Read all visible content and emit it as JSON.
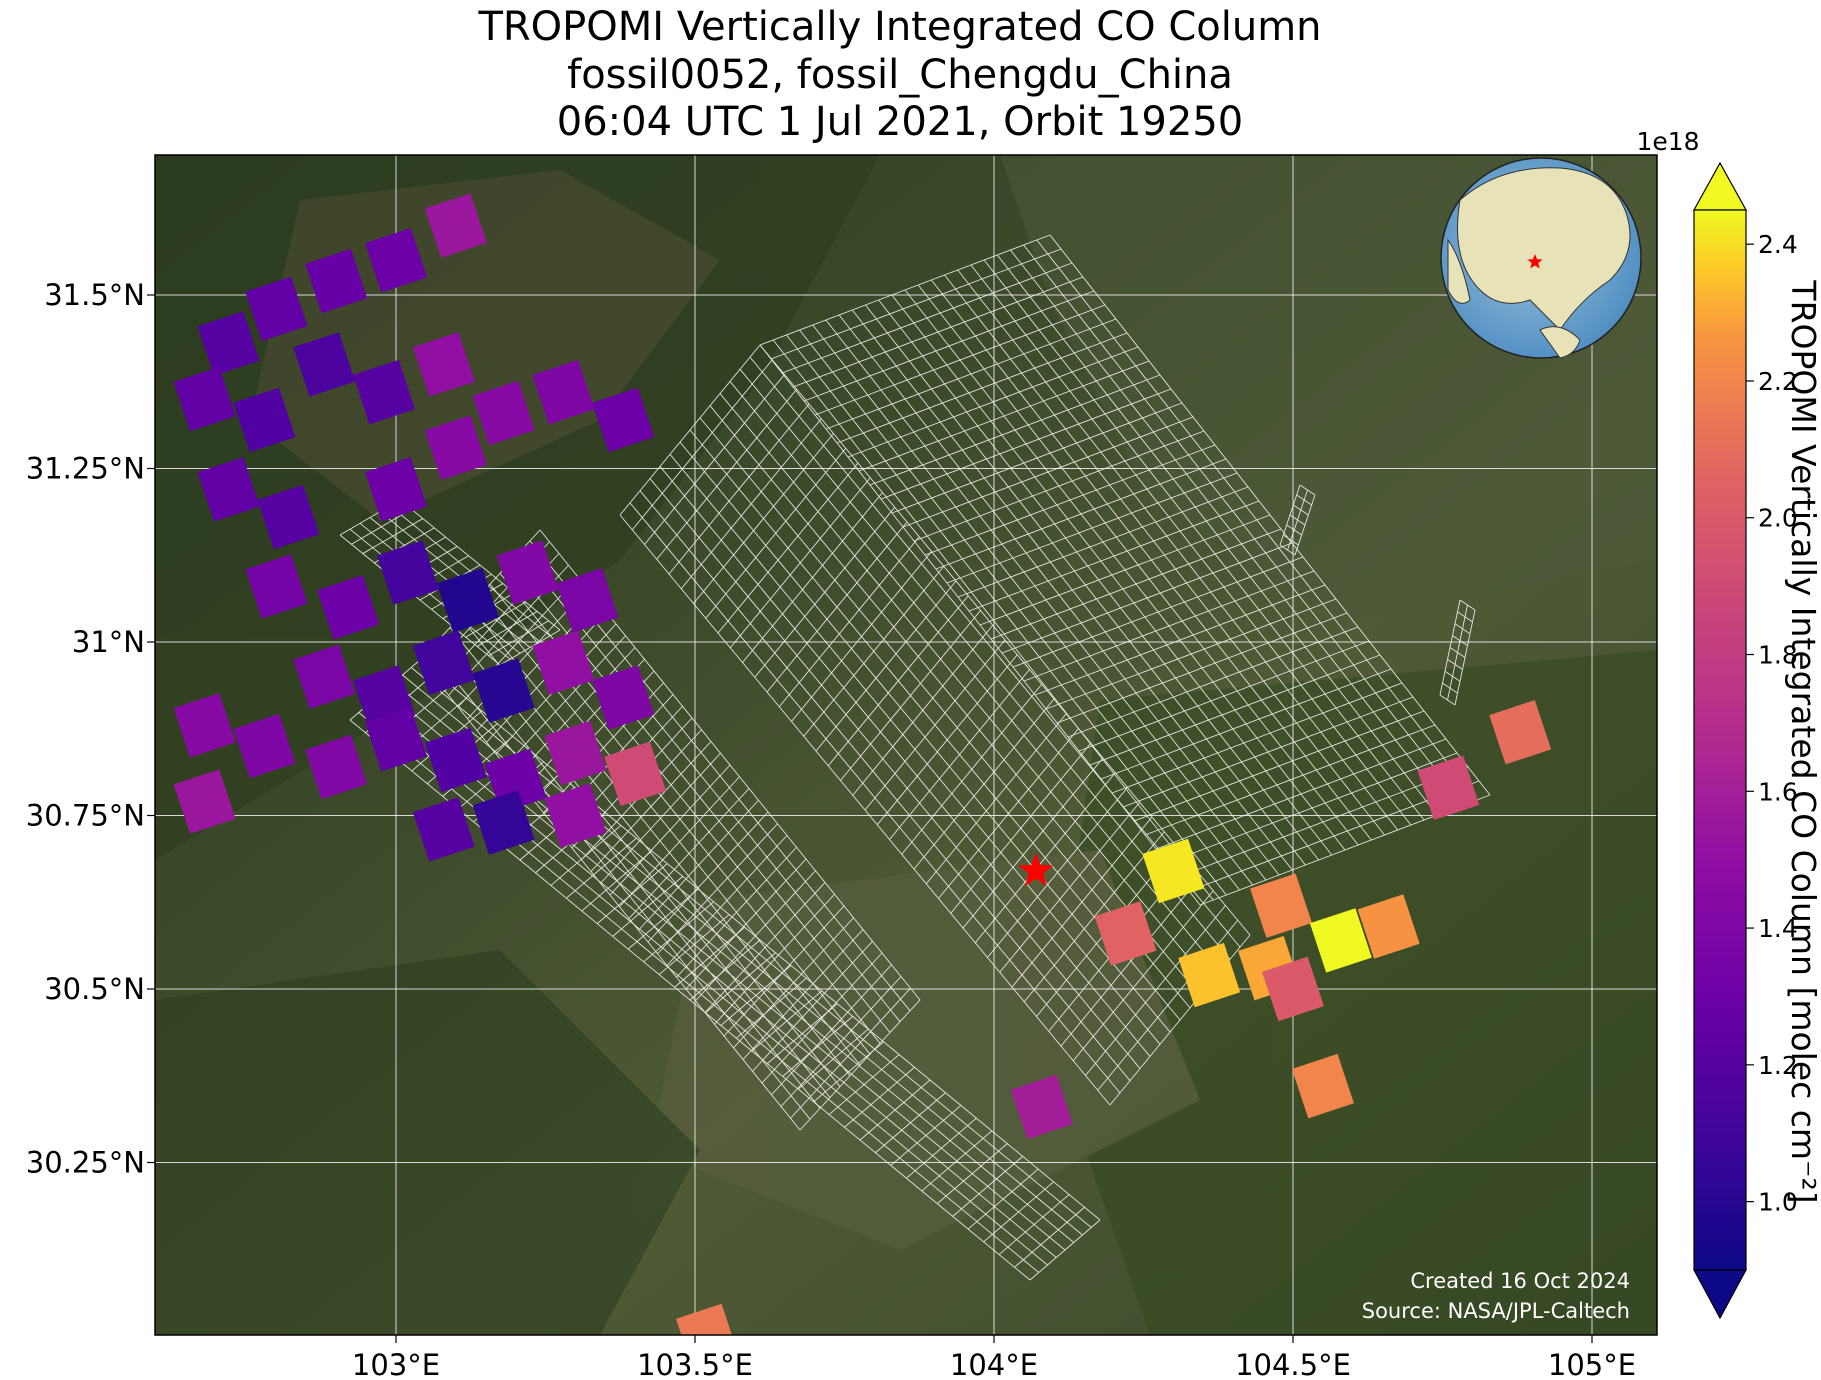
{
  "title": {
    "line1": "TROPOMI Vertically Integrated CO Column",
    "line2": "fossil0052, fossil_Chengdu_China",
    "line3": "06:04 UTC 1 Jul 2021, Orbit 19250"
  },
  "map": {
    "lon_range": [
      102.6,
      105.1
    ],
    "lat_range": [
      30.0,
      31.7
    ],
    "x_ticks": [
      {
        "value": 103.0,
        "label": "103°E"
      },
      {
        "value": 103.5,
        "label": "103.5°E"
      },
      {
        "value": 104.0,
        "label": "104°E"
      },
      {
        "value": 104.5,
        "label": "104.5°E"
      },
      {
        "value": 105.0,
        "label": "105°E"
      }
    ],
    "y_ticks": [
      {
        "value": 31.5,
        "label": "31.5°N"
      },
      {
        "value": 31.25,
        "label": "31.25°N"
      },
      {
        "value": 31.0,
        "label": "31°N"
      },
      {
        "value": 30.75,
        "label": "30.75°N"
      },
      {
        "value": 30.5,
        "label": "30.5°N"
      },
      {
        "value": 30.25,
        "label": "30.25°N"
      }
    ],
    "grid": true,
    "basemap": "satellite imagery",
    "site_marker": {
      "lon": 104.07,
      "lat": 30.67,
      "color": "#ff0000",
      "icon": "star-icon"
    },
    "inset_globe": {
      "position": "top-right",
      "marker_color": "#ff0000"
    }
  },
  "colorbar": {
    "label": "TROPOMI Vertically Integrated CO Column [molec cm⁻²]",
    "exponent_label": "1e18",
    "range": [
      0.9,
      2.45
    ],
    "ticks": [
      {
        "value": 1.0,
        "label": "1.0"
      },
      {
        "value": 1.2,
        "label": "1.2"
      },
      {
        "value": 1.4,
        "label": "1.4"
      },
      {
        "value": 1.6,
        "label": "1.6"
      },
      {
        "value": 1.8,
        "label": "1.8"
      },
      {
        "value": 2.0,
        "label": "2.0"
      },
      {
        "value": 2.2,
        "label": "2.2"
      },
      {
        "value": 2.4,
        "label": "2.4"
      }
    ],
    "colormap": "plasma",
    "extend": "both"
  },
  "credit": {
    "created": "Created 16 Oct 2024",
    "source": "Source: NASA/JPL-Caltech"
  },
  "chart_data": {
    "type": "heatmap",
    "title": "TROPOMI Vertically Integrated CO Column",
    "subtitle": "fossil0052, fossil_Chengdu_China; 06:04 UTC 1 Jul 2021, Orbit 19250",
    "units": "molec cm⁻² (×1e18)",
    "pixels": [
      {
        "lon": 102.72,
        "lat": 31.43,
        "value": 1.2
      },
      {
        "lon": 102.8,
        "lat": 31.48,
        "value": 1.25
      },
      {
        "lon": 102.9,
        "lat": 31.52,
        "value": 1.28
      },
      {
        "lon": 103.0,
        "lat": 31.55,
        "value": 1.3
      },
      {
        "lon": 103.1,
        "lat": 31.6,
        "value": 1.55
      },
      {
        "lon": 102.68,
        "lat": 31.35,
        "value": 1.25
      },
      {
        "lon": 102.78,
        "lat": 31.32,
        "value": 1.18
      },
      {
        "lon": 102.88,
        "lat": 31.4,
        "value": 1.15
      },
      {
        "lon": 102.98,
        "lat": 31.36,
        "value": 1.2
      },
      {
        "lon": 103.08,
        "lat": 31.4,
        "value": 1.5
      },
      {
        "lon": 103.18,
        "lat": 31.33,
        "value": 1.45
      },
      {
        "lon": 103.28,
        "lat": 31.36,
        "value": 1.4
      },
      {
        "lon": 103.38,
        "lat": 31.32,
        "value": 1.3
      },
      {
        "lon": 102.72,
        "lat": 31.22,
        "value": 1.25
      },
      {
        "lon": 102.82,
        "lat": 31.18,
        "value": 1.2
      },
      {
        "lon": 103.0,
        "lat": 31.22,
        "value": 1.3
      },
      {
        "lon": 103.1,
        "lat": 31.28,
        "value": 1.45
      },
      {
        "lon": 102.8,
        "lat": 31.08,
        "value": 1.35
      },
      {
        "lon": 102.92,
        "lat": 31.05,
        "value": 1.3
      },
      {
        "lon": 103.02,
        "lat": 31.1,
        "value": 1.12
      },
      {
        "lon": 103.12,
        "lat": 31.06,
        "value": 0.98
      },
      {
        "lon": 103.22,
        "lat": 31.1,
        "value": 1.42
      },
      {
        "lon": 103.32,
        "lat": 31.06,
        "value": 1.38
      },
      {
        "lon": 102.88,
        "lat": 30.95,
        "value": 1.38
      },
      {
        "lon": 102.98,
        "lat": 30.92,
        "value": 1.2
      },
      {
        "lon": 103.08,
        "lat": 30.97,
        "value": 1.1
      },
      {
        "lon": 103.18,
        "lat": 30.93,
        "value": 1.0
      },
      {
        "lon": 103.28,
        "lat": 30.97,
        "value": 1.5
      },
      {
        "lon": 103.38,
        "lat": 30.92,
        "value": 1.4
      },
      {
        "lon": 102.68,
        "lat": 30.88,
        "value": 1.45
      },
      {
        "lon": 102.78,
        "lat": 30.85,
        "value": 1.4
      },
      {
        "lon": 102.9,
        "lat": 30.82,
        "value": 1.42
      },
      {
        "lon": 103.0,
        "lat": 30.86,
        "value": 1.25
      },
      {
        "lon": 103.1,
        "lat": 30.83,
        "value": 1.18
      },
      {
        "lon": 103.2,
        "lat": 30.8,
        "value": 1.3
      },
      {
        "lon": 103.3,
        "lat": 30.84,
        "value": 1.55
      },
      {
        "lon": 103.4,
        "lat": 30.81,
        "value": 1.9
      },
      {
        "lon": 102.68,
        "lat": 30.77,
        "value": 1.55
      },
      {
        "lon": 103.08,
        "lat": 30.73,
        "value": 1.2
      },
      {
        "lon": 103.18,
        "lat": 30.74,
        "value": 1.05
      },
      {
        "lon": 103.3,
        "lat": 30.75,
        "value": 1.5
      },
      {
        "lon": 104.22,
        "lat": 30.58,
        "value": 2.05
      },
      {
        "lon": 104.3,
        "lat": 30.67,
        "value": 2.42
      },
      {
        "lon": 104.36,
        "lat": 30.52,
        "value": 2.35
      },
      {
        "lon": 104.46,
        "lat": 30.53,
        "value": 2.3
      },
      {
        "lon": 104.48,
        "lat": 30.62,
        "value": 2.2
      },
      {
        "lon": 104.5,
        "lat": 30.5,
        "value": 2.0
      },
      {
        "lon": 104.58,
        "lat": 30.57,
        "value": 2.45
      },
      {
        "lon": 104.66,
        "lat": 30.59,
        "value": 2.25
      },
      {
        "lon": 104.76,
        "lat": 30.79,
        "value": 1.9
      },
      {
        "lon": 104.88,
        "lat": 30.87,
        "value": 2.1
      },
      {
        "lon": 104.55,
        "lat": 30.36,
        "value": 2.2
      },
      {
        "lon": 104.08,
        "lat": 30.33,
        "value": 1.6
      },
      {
        "lon": 103.52,
        "lat": 30.0,
        "value": 2.15
      }
    ],
    "xlabel": "",
    "ylabel": ""
  }
}
